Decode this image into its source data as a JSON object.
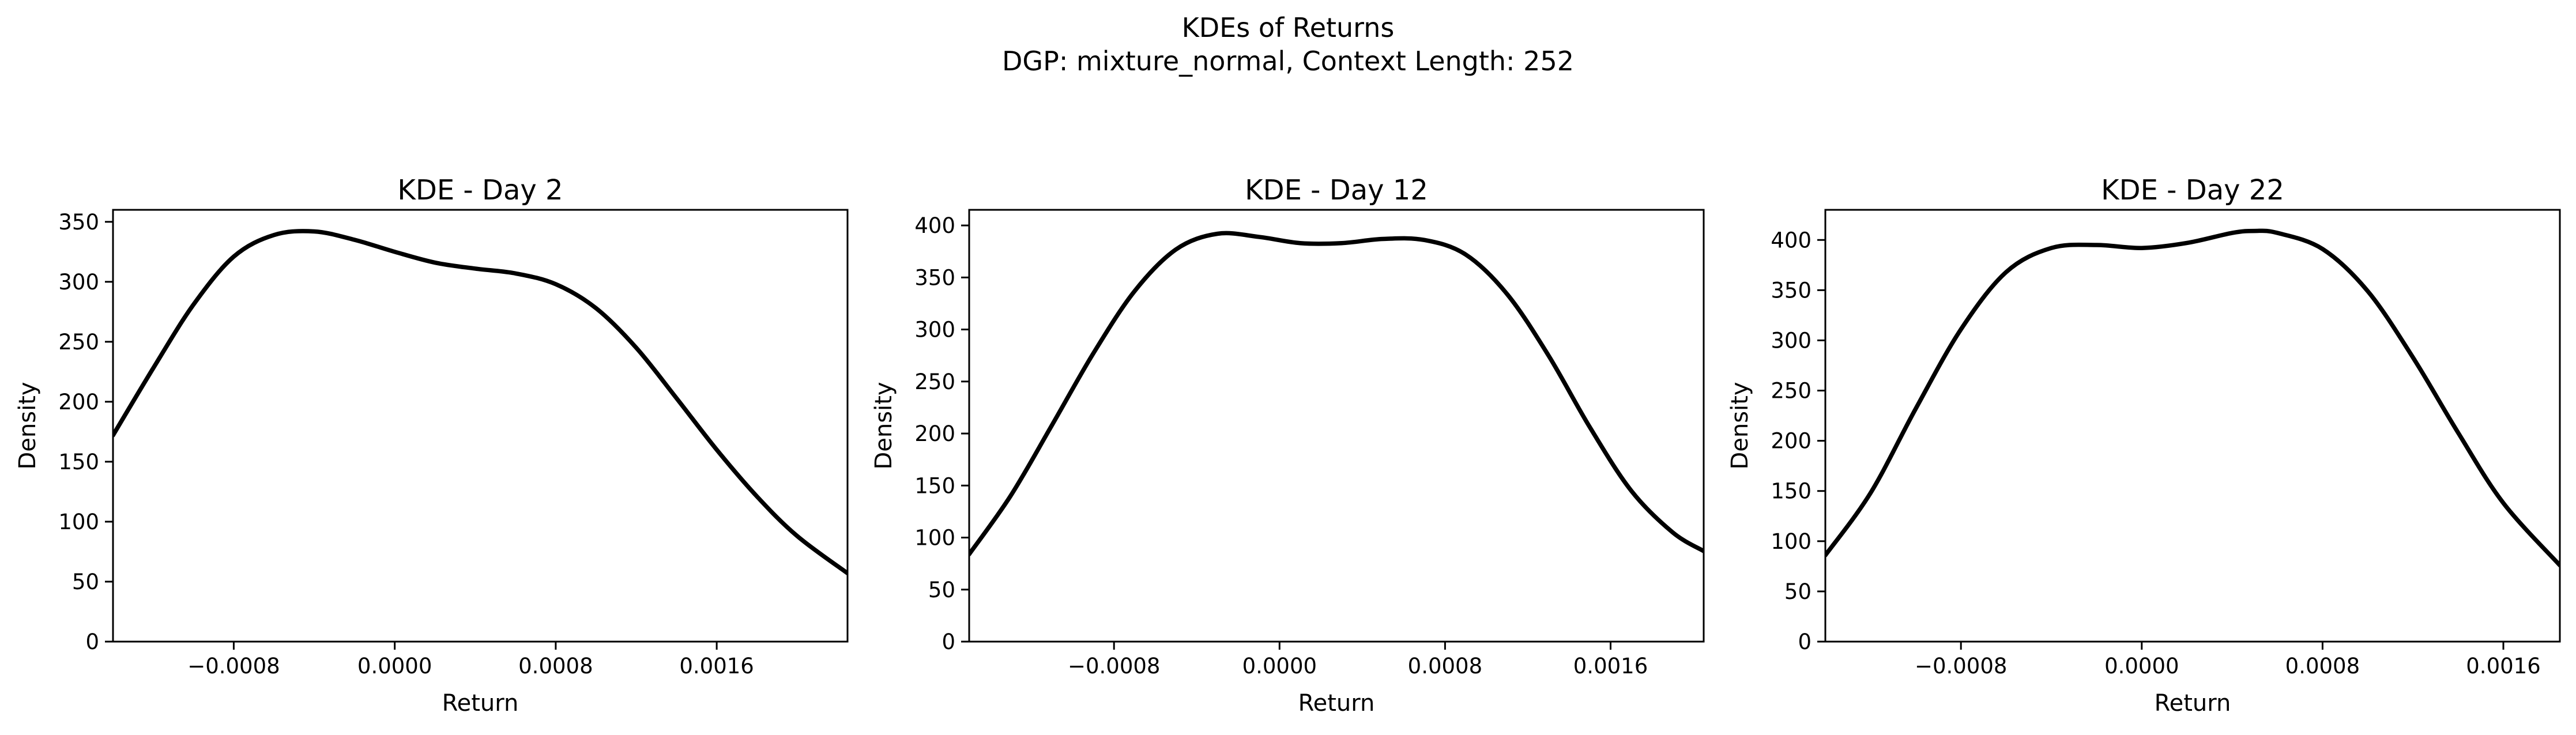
{
  "figure": {
    "title": "KDEs of Returns",
    "subtitle": "DGP: mixture_normal, Context Length: 252"
  },
  "chart_data": [
    {
      "type": "line",
      "title": "KDE - Day 2",
      "xlabel": "Return",
      "ylabel": "Density",
      "xlim": [
        -0.0014,
        0.00225
      ],
      "ylim": [
        0,
        360
      ],
      "xticks": [
        -0.0008,
        0.0,
        0.0008,
        0.0016
      ],
      "xtick_labels": [
        "−0.0008",
        "0.0000",
        "0.0008",
        "0.0016"
      ],
      "yticks": [
        0,
        50,
        100,
        150,
        200,
        250,
        300,
        350
      ],
      "ytick_labels": [
        "0",
        "50",
        "100",
        "150",
        "200",
        "250",
        "300",
        "350"
      ],
      "grid": false,
      "series": [
        {
          "color": "#000000",
          "x": [
            -0.0014,
            -0.0012,
            -0.001,
            -0.0008,
            -0.0006,
            -0.0004,
            -0.0002,
            0.0,
            0.0002,
            0.0004,
            0.0006,
            0.0008,
            0.001,
            0.0012,
            0.0014,
            0.0016,
            0.0018,
            0.002,
            0.00225
          ],
          "y": [
            172,
            228,
            281,
            321,
            339,
            342,
            335,
            325,
            316,
            311,
            307,
            298,
            278,
            245,
            203,
            160,
            121,
            88,
            57
          ]
        }
      ]
    },
    {
      "type": "line",
      "title": "KDE - Day 12",
      "xlabel": "Return",
      "ylabel": "Density",
      "xlim": [
        -0.0015,
        0.00205
      ],
      "ylim": [
        0,
        415
      ],
      "xticks": [
        -0.0008,
        0.0,
        0.0008,
        0.0016
      ],
      "xtick_labels": [
        "−0.0008",
        "0.0000",
        "0.0008",
        "0.0016"
      ],
      "yticks": [
        0,
        50,
        100,
        150,
        200,
        250,
        300,
        350,
        400
      ],
      "ytick_labels": [
        "0",
        "50",
        "100",
        "150",
        "200",
        "250",
        "300",
        "350",
        "400"
      ],
      "grid": false,
      "series": [
        {
          "color": "#000000",
          "x": [
            -0.0015,
            -0.0013,
            -0.0011,
            -0.0009,
            -0.0007,
            -0.0005,
            -0.0003,
            -0.0001,
            0.0001,
            0.0003,
            0.0005,
            0.0007,
            0.0009,
            0.0011,
            0.0013,
            0.0015,
            0.0017,
            0.0019,
            0.00205
          ],
          "y": [
            84,
            140,
            208,
            277,
            337,
            377,
            392,
            389,
            383,
            383,
            387,
            386,
            372,
            334,
            275,
            206,
            145,
            105,
            87
          ]
        }
      ]
    },
    {
      "type": "line",
      "title": "KDE - Day 22",
      "xlabel": "Return",
      "ylabel": "Density",
      "xlim": [
        -0.0014,
        0.00185
      ],
      "ylim": [
        0,
        430
      ],
      "xticks": [
        -0.0008,
        0.0,
        0.0008,
        0.0016
      ],
      "xtick_labels": [
        "−0.0008",
        "0.0000",
        "0.0008",
        "0.0016"
      ],
      "yticks": [
        0,
        50,
        100,
        150,
        200,
        250,
        300,
        350,
        400
      ],
      "ytick_labels": [
        "0",
        "50",
        "100",
        "150",
        "200",
        "250",
        "300",
        "350",
        "400"
      ],
      "grid": false,
      "series": [
        {
          "color": "#000000",
          "x": [
            -0.0014,
            -0.0012,
            -0.001,
            -0.0008,
            -0.0006,
            -0.0004,
            -0.0002,
            0.0,
            0.0002,
            0.0004,
            0.0005,
            0.0006,
            0.0008,
            0.001,
            0.0012,
            0.0014,
            0.0016,
            0.00185
          ],
          "y": [
            86,
            148,
            232,
            311,
            368,
            392,
            395,
            392,
            397,
            407,
            409,
            407,
            391,
            349,
            283,
            208,
            138,
            76
          ]
        }
      ]
    }
  ]
}
